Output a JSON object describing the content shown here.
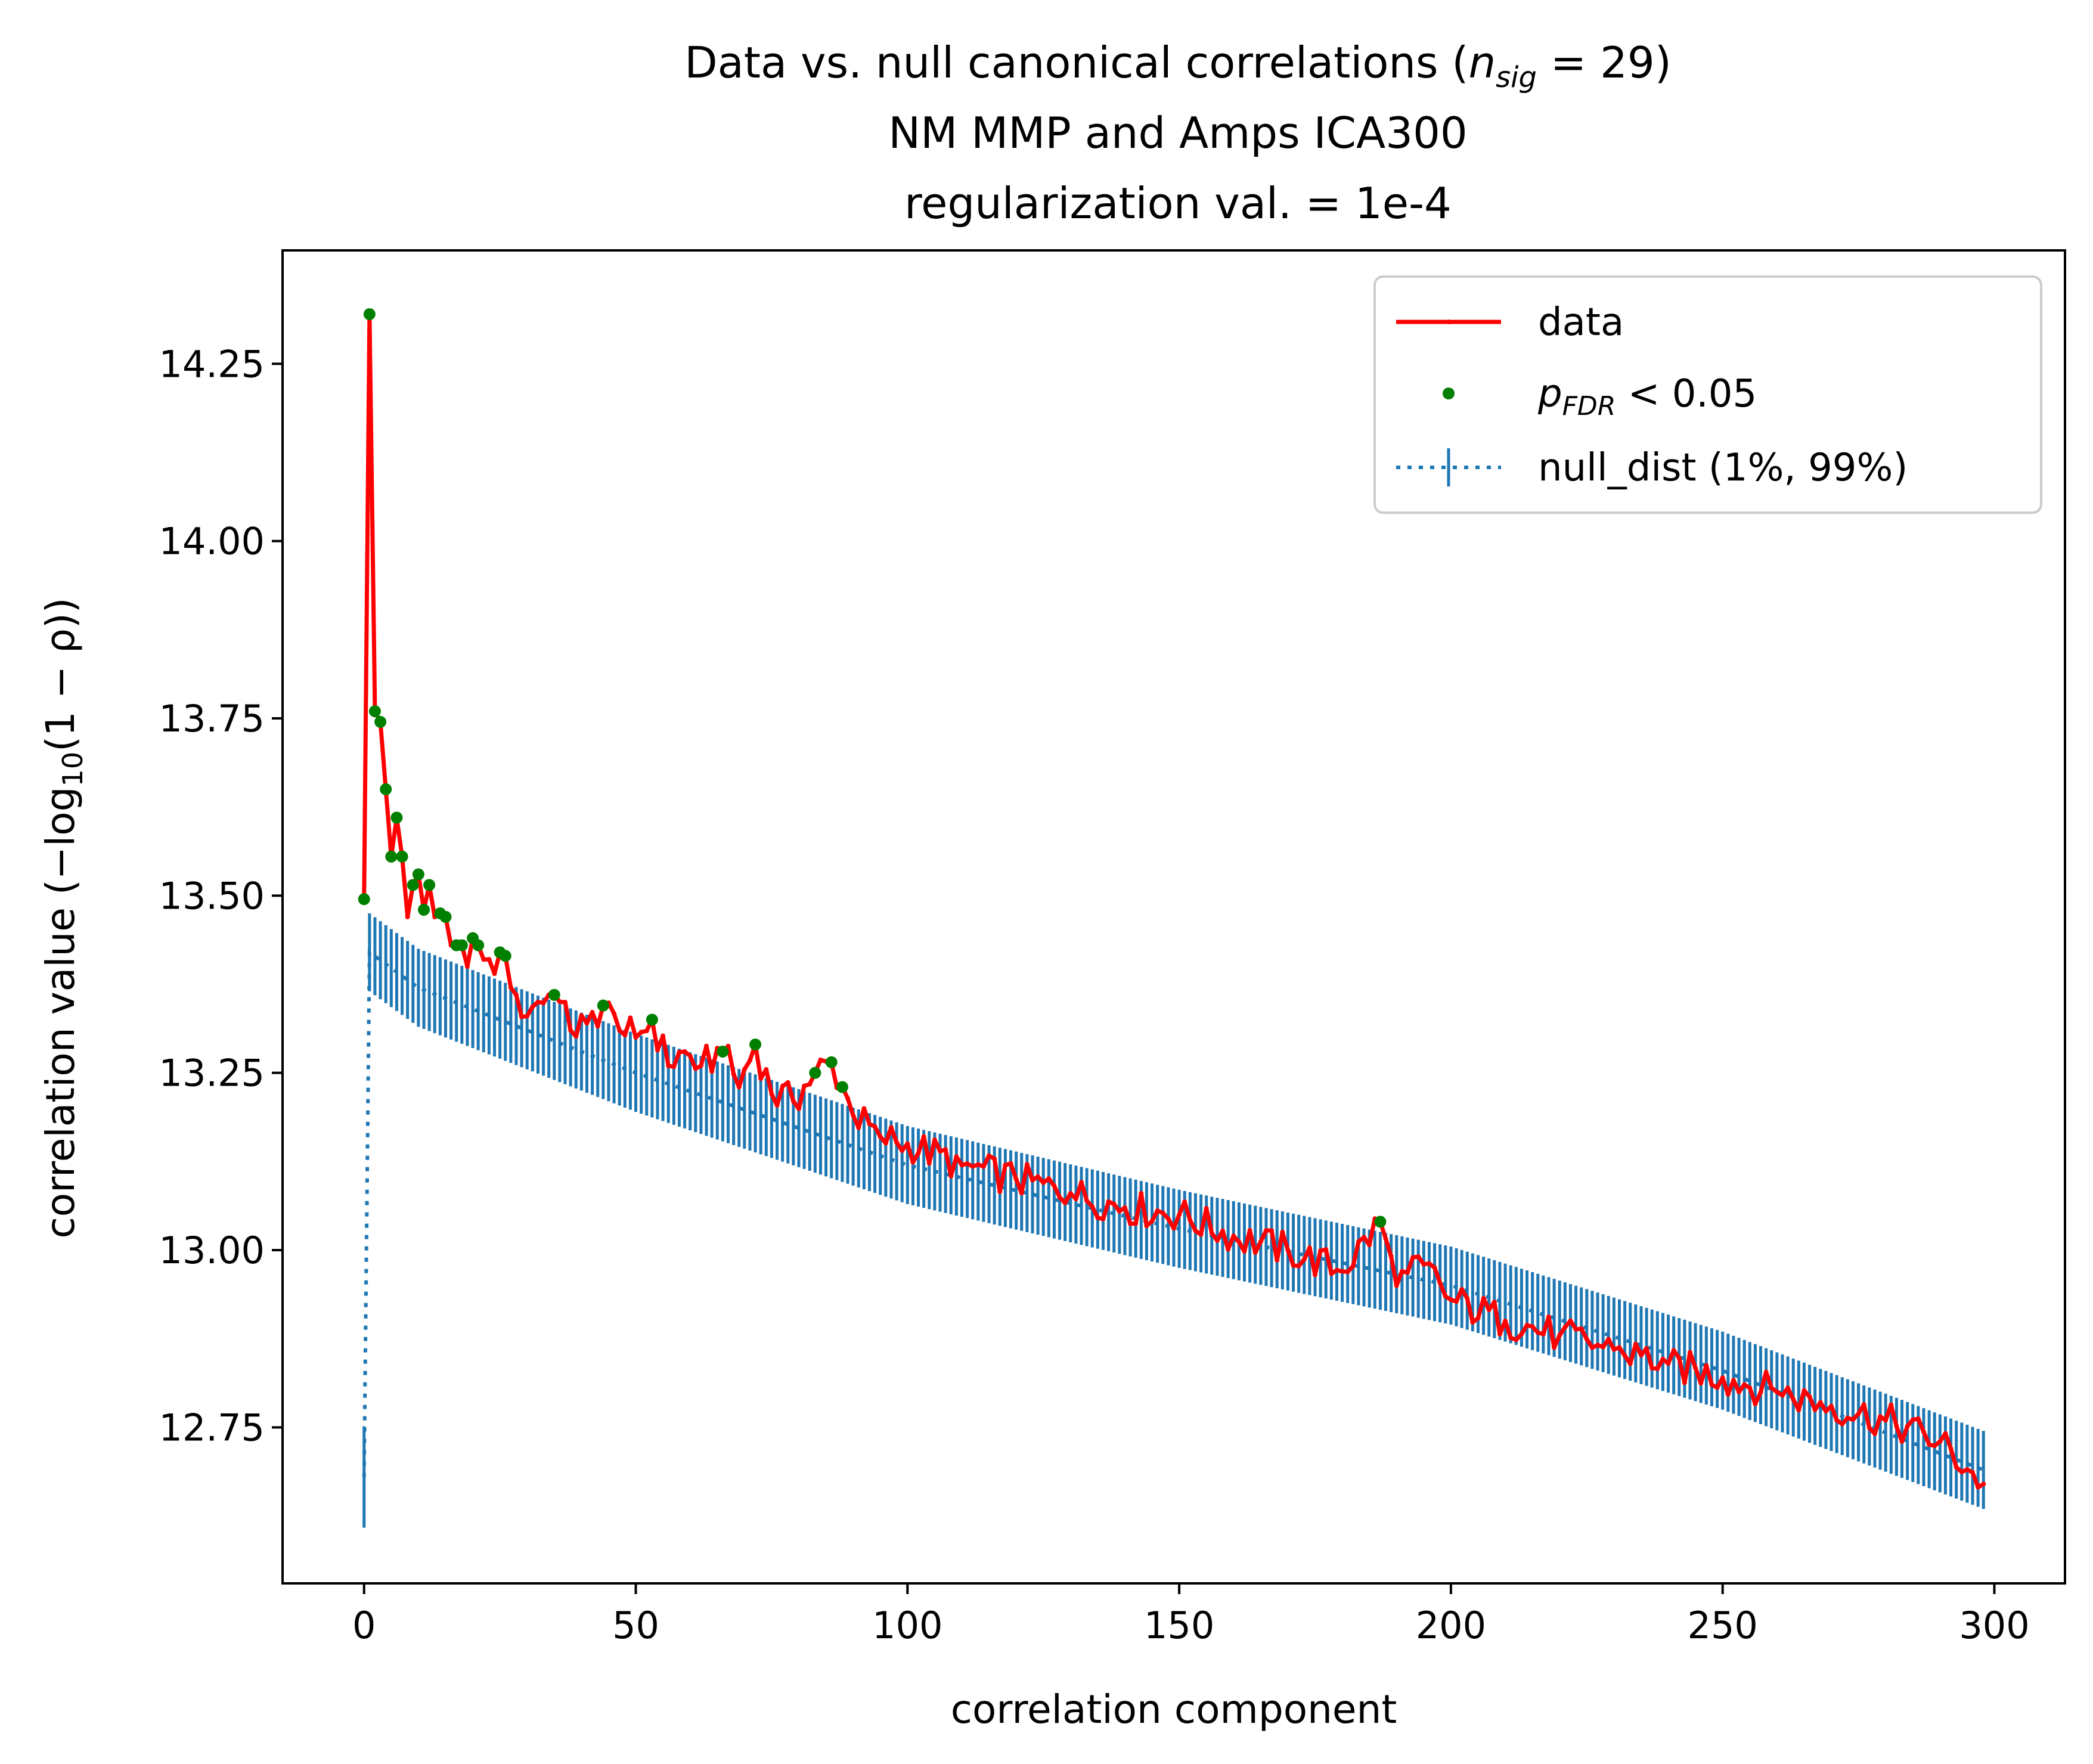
{
  "chart_data": {
    "type": "line",
    "title": {
      "line1_main": "Data vs. null canonical correlations (",
      "line1_n": "n",
      "line1_sub": "sig",
      "line1_end": " = 29)",
      "line2": "NM MMP and Amps ICA300",
      "line3": "regularization val. = 1e-4"
    },
    "xlabel": "correlation component",
    "ylabel": {
      "pre": "correlation value (−log",
      "sub": "10",
      "post": "(1 − ρ))"
    },
    "xlim": [
      -15,
      313
    ],
    "ylim": [
      12.53,
      14.41
    ],
    "x_ticks": [
      0,
      50,
      100,
      150,
      200,
      250,
      300
    ],
    "x_tick_labels": [
      "0",
      "50",
      "100",
      "150",
      "200",
      "250",
      "300"
    ],
    "y_ticks": [
      12.75,
      13.0,
      13.25,
      13.5,
      13.75,
      14.0,
      14.25
    ],
    "y_tick_labels": [
      "12.75",
      "13.00",
      "13.25",
      "13.50",
      "13.75",
      "14.00",
      "14.25"
    ],
    "grid": false,
    "legend_position": "top-right",
    "legend": [
      {
        "key": "data",
        "label": "data"
      },
      {
        "key": "sig",
        "label_p": "p",
        "label_sub": "FDR",
        "label_rest": " < 0.05"
      },
      {
        "key": "null",
        "label": "null_dist (1%, 99%)"
      }
    ],
    "colors": {
      "data": "#ff0000",
      "significant": "#008000",
      "null": "#1f77b4"
    },
    "significant_count": 29,
    "data_anchors": [
      [
        0,
        13.495
      ],
      [
        1,
        14.32
      ],
      [
        2,
        13.76
      ],
      [
        3,
        13.745
      ],
      [
        4,
        13.65
      ],
      [
        5,
        13.555
      ],
      [
        6,
        13.61
      ],
      [
        7,
        13.555
      ],
      [
        8,
        13.47
      ],
      [
        9,
        13.515
      ],
      [
        10,
        13.53
      ],
      [
        11,
        13.48
      ],
      [
        12,
        13.515
      ],
      [
        13,
        13.47
      ],
      [
        14,
        13.475
      ],
      [
        15,
        13.47
      ],
      [
        16,
        13.43
      ],
      [
        17,
        13.43
      ],
      [
        18,
        13.43
      ],
      [
        19,
        13.4
      ],
      [
        20,
        13.44
      ],
      [
        21,
        13.43
      ],
      [
        22,
        13.41
      ],
      [
        23,
        13.41
      ],
      [
        24,
        13.39
      ],
      [
        25,
        13.42
      ],
      [
        26,
        13.415
      ],
      [
        28,
        13.36
      ],
      [
        30,
        13.33
      ],
      [
        32,
        13.35
      ],
      [
        35,
        13.36
      ],
      [
        38,
        13.31
      ],
      [
        41,
        13.32
      ],
      [
        44,
        13.345
      ],
      [
        47,
        13.31
      ],
      [
        50,
        13.3
      ],
      [
        53,
        13.325
      ],
      [
        56,
        13.26
      ],
      [
        59,
        13.28
      ],
      [
        62,
        13.26
      ],
      [
        66,
        13.28
      ],
      [
        69,
        13.23
      ],
      [
        72,
        13.29
      ],
      [
        75,
        13.22
      ],
      [
        79,
        13.21
      ],
      [
        83,
        13.25
      ],
      [
        86,
        13.265
      ],
      [
        88,
        13.23
      ],
      [
        90,
        13.19
      ],
      [
        95,
        13.16
      ],
      [
        100,
        13.15
      ],
      [
        110,
        13.12
      ],
      [
        120,
        13.1
      ],
      [
        130,
        13.08
      ],
      [
        140,
        13.06
      ],
      [
        150,
        13.05
      ],
      [
        160,
        13.02
      ],
      [
        170,
        13.0
      ],
      [
        180,
        12.97
      ],
      [
        187,
        13.04
      ],
      [
        190,
        12.95
      ],
      [
        195,
        12.98
      ],
      [
        200,
        12.93
      ],
      [
        210,
        12.9
      ],
      [
        220,
        12.88
      ],
      [
        230,
        12.86
      ],
      [
        240,
        12.84
      ],
      [
        250,
        12.82
      ],
      [
        260,
        12.8
      ],
      [
        270,
        12.78
      ],
      [
        280,
        12.76
      ],
      [
        290,
        12.73
      ],
      [
        298,
        12.67
      ]
    ],
    "data_noise_amplitude": 0.025,
    "significant_points": [
      [
        0,
        13.495
      ],
      [
        1,
        14.32
      ],
      [
        2,
        13.76
      ],
      [
        3,
        13.745
      ],
      [
        4,
        13.65
      ],
      [
        5,
        13.555
      ],
      [
        6,
        13.61
      ],
      [
        7,
        13.555
      ],
      [
        9,
        13.515
      ],
      [
        10,
        13.53
      ],
      [
        11,
        13.48
      ],
      [
        12,
        13.515
      ],
      [
        14,
        13.475
      ],
      [
        15,
        13.47
      ],
      [
        17,
        13.43
      ],
      [
        18,
        13.43
      ],
      [
        20,
        13.44
      ],
      [
        21,
        13.43
      ],
      [
        25,
        13.42
      ],
      [
        26,
        13.415
      ],
      [
        35,
        13.36
      ],
      [
        44,
        13.345
      ],
      [
        53,
        13.325
      ],
      [
        66,
        13.28
      ],
      [
        72,
        13.29
      ],
      [
        83,
        13.25
      ],
      [
        86,
        13.265
      ],
      [
        88,
        13.23
      ],
      [
        187,
        13.04
      ]
    ],
    "null_center_anchors": [
      [
        0,
        12.68
      ],
      [
        1,
        13.42
      ],
      [
        10,
        13.37
      ],
      [
        50,
        13.25
      ],
      [
        100,
        13.12
      ],
      [
        150,
        13.03
      ],
      [
        200,
        12.95
      ],
      [
        250,
        12.83
      ],
      [
        298,
        12.69
      ]
    ],
    "null_low_offset": 0.055,
    "null_high_offset": 0.055,
    "null_components": 299
  }
}
